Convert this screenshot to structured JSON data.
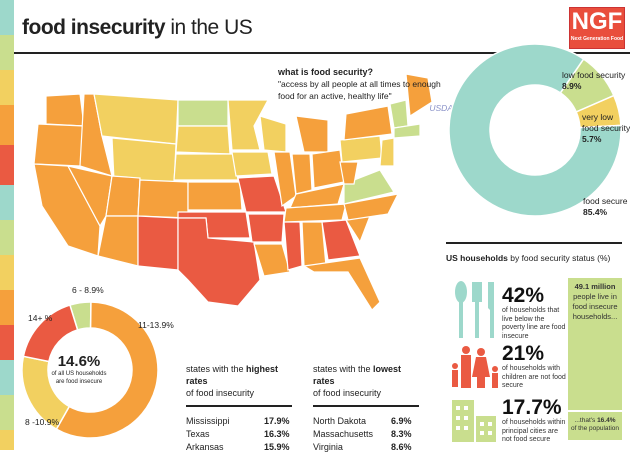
{
  "title_bold": "food insecurity",
  "title_rest": " in the US",
  "logo": {
    "text": "NGF",
    "subtitle": "Next Generation Food"
  },
  "colors": {
    "teal": "#9dd8cb",
    "green": "#c9de8e",
    "yellow": "#f2d060",
    "orange": "#f5a03c",
    "red": "#ea5a42"
  },
  "definition": {
    "heading": "what is food security?",
    "quote": "\"access by all people at all times to enough food for an active, healthy life\"",
    "source": "USDA"
  },
  "chart_data": [
    {
      "type": "pie",
      "subtype": "donut",
      "slices": [
        {
          "label": "food secure",
          "value": 85.4,
          "display": "85.4%",
          "color": "#9dd8cb"
        },
        {
          "label": "low food security",
          "value": 8.9,
          "display": "8.9%",
          "color": "#c9de8e"
        },
        {
          "label": "very low food security",
          "value": 5.7,
          "display": "5.7%",
          "color": "#f2d060"
        }
      ]
    },
    {
      "type": "pie",
      "subtype": "donut",
      "center_value": "14.6%",
      "center_text": "of all US households are food insecure",
      "slices": [
        {
          "label": "6 - 8.9%",
          "value": 5,
          "color": "#c9de8e"
        },
        {
          "label": "11-13.9%",
          "value": 58,
          "color": "#f5a03c"
        },
        {
          "label": "8 -10.9%",
          "value": 20,
          "color": "#f2d060"
        },
        {
          "label": "14+ %",
          "value": 17,
          "color": "#ea5a42"
        }
      ]
    }
  ],
  "highest": {
    "heading_pre": "states with the ",
    "heading_bold": "highest rates",
    "heading_post": "of food insecurity",
    "rows": [
      {
        "state": "Mississippi",
        "rate": "17.9%"
      },
      {
        "state": "Texas",
        "rate": "16.3%"
      },
      {
        "state": "Arkansas",
        "rate": "15.9%"
      }
    ]
  },
  "lowest": {
    "heading_pre": "states with the ",
    "heading_bold": "lowest rates",
    "heading_post": "of food insecurity",
    "rows": [
      {
        "state": "North Dakota",
        "rate": "6.9%"
      },
      {
        "state": "Massachusetts",
        "rate": "8.3%"
      },
      {
        "state": "Virginia",
        "rate": "8.6%"
      }
    ]
  },
  "households": {
    "heading_bold": "US households",
    "heading_rest": " by food security status (%)",
    "stats": [
      {
        "value": "42%",
        "text": "of households that live below the poverty line are food insecure",
        "icon": "cutlery-icon"
      },
      {
        "value": "21%",
        "text": "of households with children are not food secure",
        "icon": "family-icon"
      },
      {
        "value": "17.7%",
        "text": "of households within principal cities are not food secure",
        "icon": "buildings-icon"
      }
    ],
    "panel_top_bold": "49.1 million",
    "panel_top": "people live in food insecure households...",
    "panel_bottom_pre": "...that's ",
    "panel_bottom_bold": "16.4%",
    "panel_bottom": "of the population"
  }
}
